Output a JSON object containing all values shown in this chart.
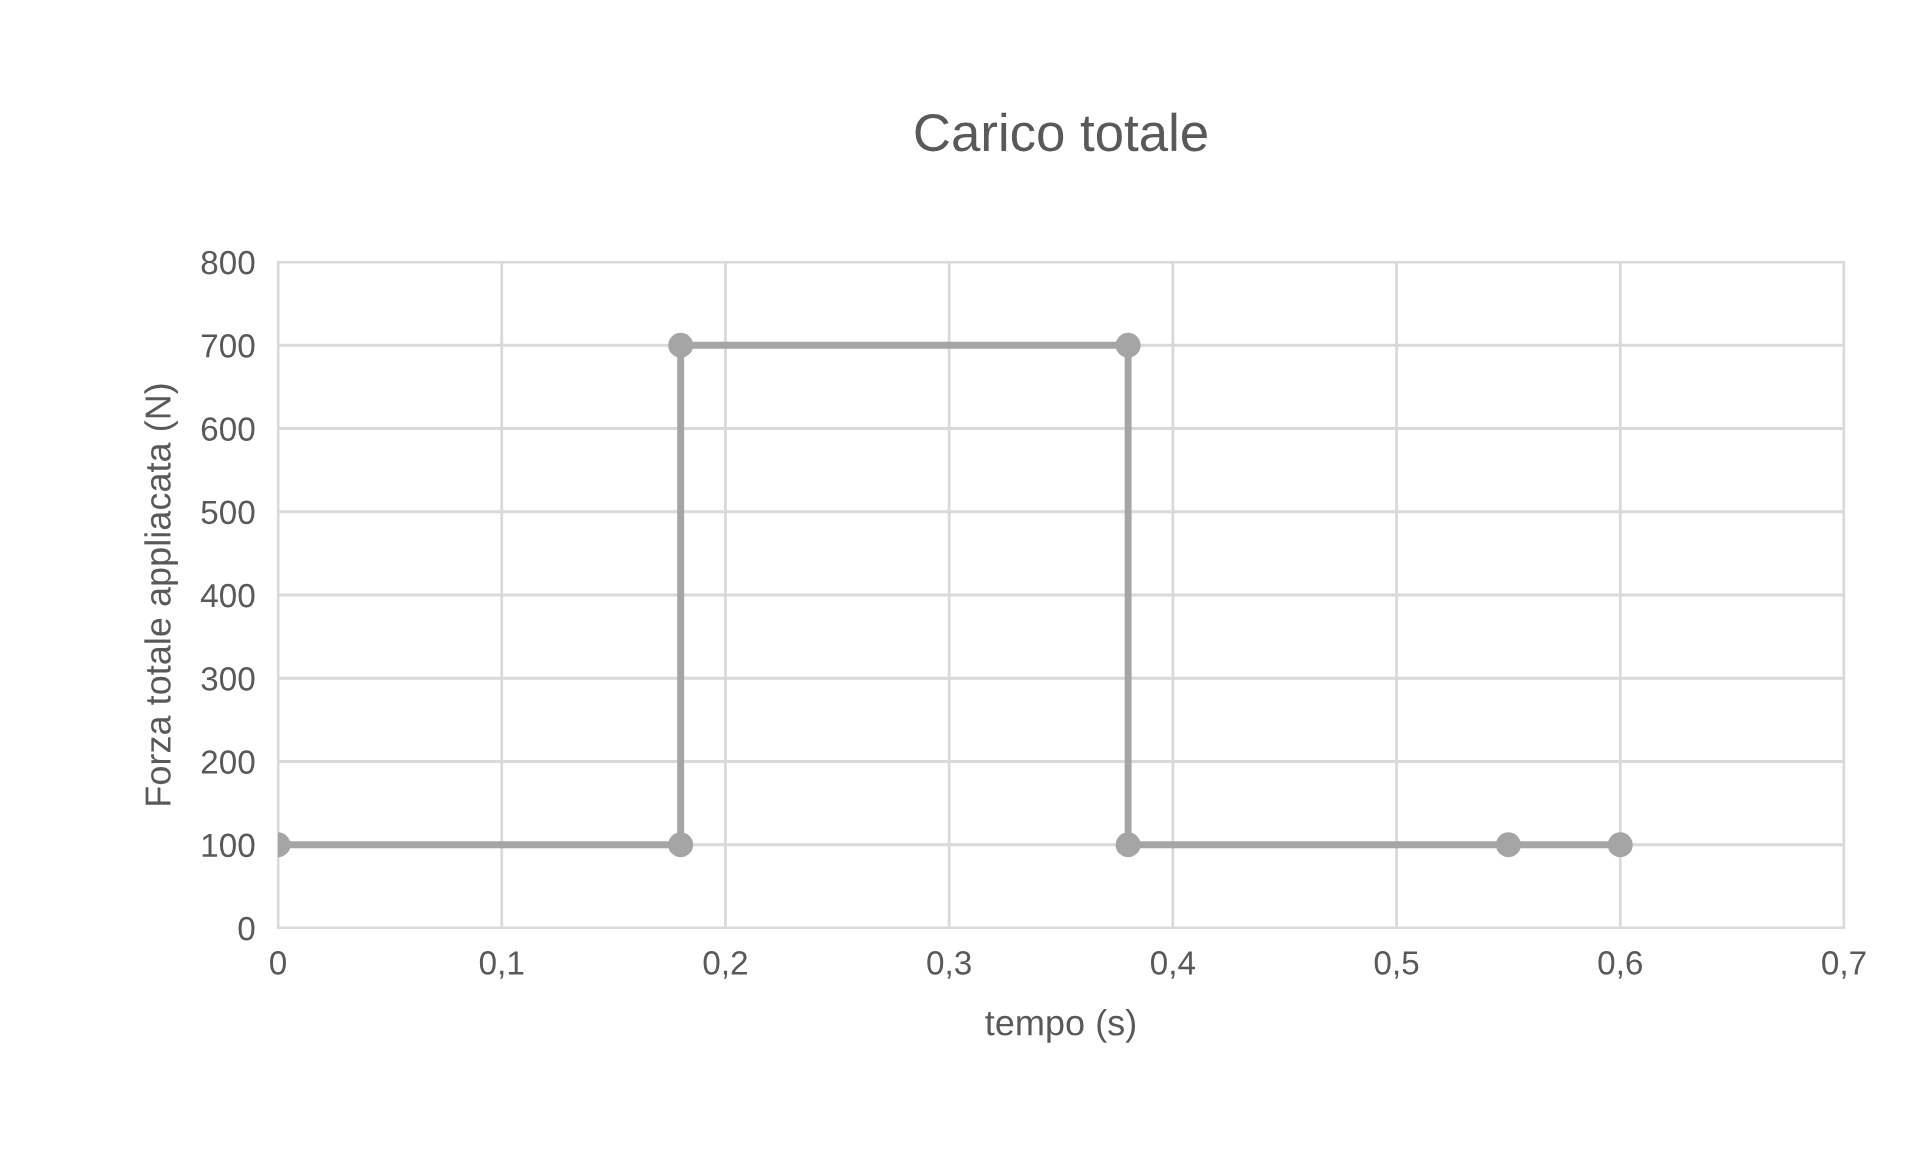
{
  "chart_data": {
    "type": "line",
    "title": "Carico totale",
    "xlabel": "tempo (s)",
    "ylabel": "Forza totale appliacata (N)",
    "series": [
      {
        "color": "#a5a5a5",
        "x": [
          0,
          0.18,
          0.18,
          0.38,
          0.38,
          0.55,
          0.6
        ],
        "values": [
          100,
          100,
          700,
          700,
          100,
          100,
          100
        ]
      }
    ],
    "xlim": [
      0,
      0.7
    ],
    "xticks": [
      0,
      {
        "value": 0.1,
        "label": "0,1"
      },
      {
        "value": 0.2,
        "label": "0,2"
      },
      {
        "value": 0.3,
        "label": "0,3"
      },
      {
        "value": 0.4,
        "label": "0,4"
      },
      {
        "value": 0.5,
        "label": "0,5"
      },
      {
        "value": 0.6,
        "label": "0,6"
      },
      {
        "value": 0.7,
        "label": "0,7"
      }
    ],
    "ylim": [
      0,
      800
    ],
    "yticks": [
      0,
      100,
      200,
      300,
      400,
      500,
      600,
      700,
      800
    ],
    "grid": true,
    "marker": "circle",
    "line_style": "solid",
    "legend": false
  }
}
